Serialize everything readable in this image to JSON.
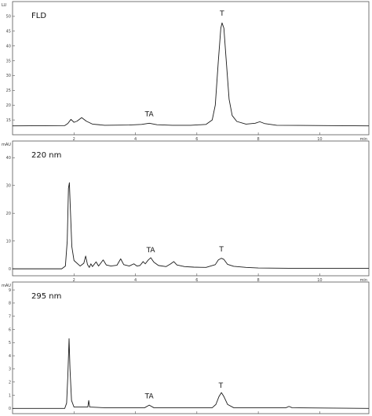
{
  "chart_data": [
    {
      "type": "line",
      "title": "FLD",
      "ylabel": "LU",
      "xlabel": "min",
      "xlim": [
        0,
        11.6
      ],
      "ylim": [
        10,
        55
      ],
      "x_ticks": [
        2,
        4,
        6,
        8,
        10
      ],
      "x_tick_labels": [
        "2",
        "4",
        "6",
        "8",
        "10"
      ],
      "y_ticks": [
        15,
        20,
        25,
        30,
        35,
        40,
        45,
        50
      ],
      "y_tick_labels": [
        "15",
        "20",
        "25",
        "30",
        "35",
        "40",
        "45",
        "50"
      ],
      "series": [
        {
          "points": [
            [
              0,
              13.0
            ],
            [
              1.7,
              13.1
            ],
            [
              1.8,
              13.8
            ],
            [
              1.9,
              15.2
            ],
            [
              2.0,
              14.2
            ],
            [
              2.1,
              14.6
            ],
            [
              2.25,
              15.8
            ],
            [
              2.4,
              14.6
            ],
            [
              2.6,
              13.6
            ],
            [
              3.0,
              13.2
            ],
            [
              3.8,
              13.3
            ],
            [
              4.2,
              13.5
            ],
            [
              4.45,
              13.9
            ],
            [
              4.7,
              13.4
            ],
            [
              5.2,
              13.2
            ],
            [
              5.8,
              13.2
            ],
            [
              6.3,
              13.5
            ],
            [
              6.5,
              15.0
            ],
            [
              6.6,
              20.0
            ],
            [
              6.7,
              35.0
            ],
            [
              6.78,
              46.0
            ],
            [
              6.82,
              47.8
            ],
            [
              6.88,
              46.0
            ],
            [
              6.95,
              36.0
            ],
            [
              7.05,
              22.0
            ],
            [
              7.15,
              16.5
            ],
            [
              7.3,
              14.5
            ],
            [
              7.6,
              13.6
            ],
            [
              7.9,
              13.9
            ],
            [
              8.05,
              14.4
            ],
            [
              8.2,
              13.8
            ],
            [
              8.6,
              13.2
            ],
            [
              11.6,
              13.0
            ]
          ]
        }
      ],
      "annotations": [
        {
          "text": "TA",
          "x": 4.45,
          "y": 16.2
        },
        {
          "text": "T",
          "x": 6.82,
          "y": 50.2
        }
      ]
    },
    {
      "type": "line",
      "title": "220 nm",
      "ylabel": "mAU",
      "xlabel": "min",
      "xlim": [
        0,
        11.6
      ],
      "ylim": [
        -2.5,
        46
      ],
      "x_ticks": [
        2,
        4,
        6,
        8,
        10
      ],
      "x_tick_labels": [
        "2",
        "4",
        "6",
        "8",
        "10"
      ],
      "y_ticks": [
        0,
        10,
        20,
        30,
        40
      ],
      "y_tick_labels": [
        "0",
        "10",
        "20",
        "30",
        "40"
      ],
      "series": [
        {
          "points": [
            [
              0,
              0.0
            ],
            [
              1.6,
              0.0
            ],
            [
              1.72,
              1.0
            ],
            [
              1.78,
              10.0
            ],
            [
              1.82,
              29.0
            ],
            [
              1.85,
              31.0
            ],
            [
              1.88,
              22.0
            ],
            [
              1.93,
              8.0
            ],
            [
              2.0,
              3.0
            ],
            [
              2.2,
              1.0
            ],
            [
              2.32,
              2.0
            ],
            [
              2.38,
              4.6
            ],
            [
              2.44,
              1.5
            ],
            [
              2.5,
              0.5
            ],
            [
              2.55,
              1.8
            ],
            [
              2.6,
              0.8
            ],
            [
              2.72,
              2.5
            ],
            [
              2.8,
              1.0
            ],
            [
              2.95,
              3.2
            ],
            [
              3.05,
              1.4
            ],
            [
              3.2,
              1.0
            ],
            [
              3.4,
              1.3
            ],
            [
              3.52,
              3.6
            ],
            [
              3.62,
              1.5
            ],
            [
              3.8,
              1.0
            ],
            [
              3.95,
              1.8
            ],
            [
              4.05,
              1.0
            ],
            [
              4.15,
              1.2
            ],
            [
              4.25,
              2.6
            ],
            [
              4.32,
              1.8
            ],
            [
              4.42,
              3.2
            ],
            [
              4.5,
              4.0
            ],
            [
              4.6,
              2.4
            ],
            [
              4.75,
              1.2
            ],
            [
              5.0,
              0.8
            ],
            [
              5.15,
              1.8
            ],
            [
              5.25,
              2.6
            ],
            [
              5.35,
              1.4
            ],
            [
              5.6,
              0.8
            ],
            [
              5.9,
              0.6
            ],
            [
              6.3,
              0.5
            ],
            [
              6.6,
              1.5
            ],
            [
              6.7,
              3.2
            ],
            [
              6.8,
              3.8
            ],
            [
              6.88,
              3.4
            ],
            [
              7.0,
              1.6
            ],
            [
              7.2,
              0.9
            ],
            [
              7.6,
              0.5
            ],
            [
              8.0,
              0.3
            ],
            [
              9.0,
              0.2
            ],
            [
              11.6,
              0.2
            ]
          ]
        }
      ],
      "annotations": [
        {
          "text": "TA",
          "x": 4.5,
          "y": 6.0
        },
        {
          "text": "T",
          "x": 6.8,
          "y": 6.2
        }
      ]
    },
    {
      "type": "line",
      "title": "295 nm",
      "ylabel": "mAU",
      "xlabel": "min",
      "xlim": [
        0,
        11.6
      ],
      "ylim": [
        -0.4,
        9.6
      ],
      "x_ticks": [
        2,
        4,
        6,
        8,
        10
      ],
      "x_tick_labels": [
        "2",
        "4",
        "6",
        "8",
        "10"
      ],
      "y_ticks": [
        0,
        1,
        2,
        3,
        4,
        5,
        6,
        7,
        8,
        9
      ],
      "y_tick_labels": [
        "0",
        "1",
        "2",
        "3",
        "4",
        "5",
        "6",
        "7",
        "8",
        "9"
      ],
      "series": [
        {
          "points": [
            [
              0,
              0.0
            ],
            [
              1.7,
              0.0
            ],
            [
              1.76,
              0.4
            ],
            [
              1.8,
              2.5
            ],
            [
              1.84,
              5.3
            ],
            [
              1.87,
              3.0
            ],
            [
              1.92,
              0.6
            ],
            [
              2.0,
              0.1
            ],
            [
              2.45,
              0.1
            ],
            [
              2.48,
              0.6
            ],
            [
              2.51,
              0.1
            ],
            [
              3.0,
              0.05
            ],
            [
              4.3,
              0.05
            ],
            [
              4.45,
              0.25
            ],
            [
              4.6,
              0.05
            ],
            [
              6.5,
              0.05
            ],
            [
              6.62,
              0.3
            ],
            [
              6.72,
              0.9
            ],
            [
              6.8,
              1.2
            ],
            [
              6.88,
              0.9
            ],
            [
              7.0,
              0.3
            ],
            [
              7.2,
              0.05
            ],
            [
              8.9,
              0.05
            ],
            [
              9.0,
              0.15
            ],
            [
              9.1,
              0.05
            ],
            [
              11.6,
              0.0
            ]
          ]
        }
      ],
      "annotations": [
        {
          "text": "TA",
          "x": 4.45,
          "y": 0.75
        },
        {
          "text": "T",
          "x": 6.78,
          "y": 1.55
        }
      ]
    }
  ]
}
